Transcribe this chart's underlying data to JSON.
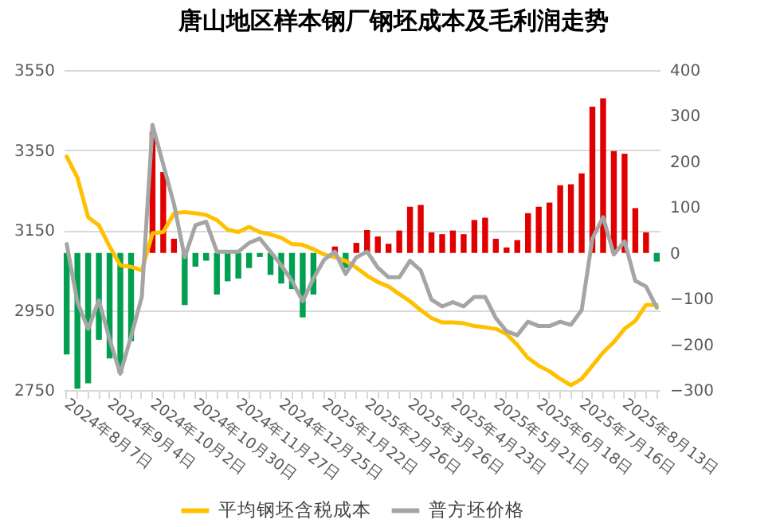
{
  "chart_data": {
    "type": "line",
    "title": "唐山地区样本钢厂钢坯成本及毛利润走势",
    "categories": [
      "2024年8月7日",
      null,
      null,
      null,
      "2024年9月4日",
      null,
      null,
      null,
      "2024年10月2日",
      null,
      null,
      null,
      "2024年10月30日",
      null,
      null,
      null,
      "2024年11月27日",
      null,
      null,
      null,
      "2024年12月25日",
      null,
      null,
      null,
      "2025年1月22日",
      null,
      null,
      null,
      "2025年2月26日",
      null,
      null,
      null,
      "2025年3月26日",
      null,
      null,
      null,
      "2025年4月23日",
      null,
      null,
      null,
      "2025年5月21日",
      null,
      null,
      null,
      "2025年6月18日",
      null,
      null,
      null,
      "2025年7月16日",
      null,
      null,
      null,
      "2025年8月13日",
      null,
      null,
      null
    ],
    "series": [
      {
        "type": "bar",
        "axis": "y2",
        "values": [
          -222,
          -297,
          -285,
          -190,
          -231,
          -262,
          -193,
          null,
          265,
          177,
          31,
          -114,
          -30,
          -17,
          -91,
          -62,
          -56,
          -33,
          -9,
          -48,
          -67,
          -79,
          -141,
          -91,
          null,
          14,
          -33,
          22,
          50,
          36,
          20,
          49,
          101,
          105,
          45,
          41,
          49,
          41,
          72,
          77,
          31,
          12,
          28,
          87,
          101,
          110,
          148,
          150,
          174,
          320,
          338,
          223,
          217,
          98,
          45,
          -19
        ],
        "colors": [
          "#00a050",
          "#00a050",
          "#00a050",
          "#00a050",
          "#00a050",
          "#00a050",
          "#00a050",
          "#00a050",
          "#e00000",
          "#e00000",
          "#e00000",
          "#00a050",
          "#00a050",
          "#00a050",
          "#00a050",
          "#00a050",
          "#00a050",
          "#00a050",
          "#00a050",
          "#00a050",
          "#00a050",
          "#00a050",
          "#00a050",
          "#00a050",
          "#00a050",
          "#e00000",
          "#00a050",
          "#e00000",
          "#e00000",
          "#e00000",
          "#e00000",
          "#e00000",
          "#e00000",
          "#e00000",
          "#e00000",
          "#e00000",
          "#e00000",
          "#e00000",
          "#e00000",
          "#e00000",
          "#e00000",
          "#e00000",
          "#e00000",
          "#e00000",
          "#e00000",
          "#e00000",
          "#e00000",
          "#e00000",
          "#e00000",
          "#e00000",
          "#e00000",
          "#e00000",
          "#e00000",
          "#e00000",
          "#e00000",
          "#00a050"
        ]
      },
      {
        "name": "平均钢坯含税成本",
        "color": "#ffc000",
        "values": [
          3334,
          3281,
          3182,
          3162,
          3109,
          3062,
          3058,
          3049,
          3142,
          3145,
          3192,
          3195,
          3192,
          3188,
          3175,
          3151,
          3145,
          3158,
          3145,
          3139,
          3131,
          3115,
          3113,
          3102,
          3089,
          3082,
          3073,
          3056,
          3036,
          3020,
          3009,
          2990,
          2972,
          2950,
          2930,
          2919,
          2919,
          2917,
          2910,
          2907,
          2903,
          2890,
          2863,
          2830,
          2811,
          2797,
          2778,
          2762,
          2778,
          2811,
          2844,
          2870,
          2903,
          2923,
          2963,
          2963
        ]
      },
      {
        "name": "普方坯价格",
        "color": "#a5a5a5",
        "values": [
          3115,
          2970,
          2903,
          2974,
          2877,
          2791,
          2884,
          2983,
          3413,
          3314,
          3215,
          3082,
          3162,
          3171,
          3096,
          3096,
          3096,
          3118,
          3129,
          3096,
          3062,
          3023,
          2972,
          3029,
          3076,
          3096,
          3040,
          3082,
          3096,
          3056,
          3032,
          3032,
          3073,
          3049,
          2976,
          2959,
          2970,
          2959,
          2983,
          2983,
          2930,
          2897,
          2887,
          2921,
          2910,
          2910,
          2921,
          2913,
          2950,
          3129,
          3182,
          3089,
          3122,
          3023,
          3009,
          2956
        ]
      }
    ],
    "ylim": [
      2750,
      3550
    ],
    "yticks": [
      {
        "value": 2750,
        "label": "2750"
      },
      {
        "value": 2950,
        "label": "2950"
      },
      {
        "value": 3150,
        "label": "3150"
      },
      {
        "value": 3350,
        "label": "3350"
      },
      {
        "value": 3550,
        "label": "3550"
      }
    ],
    "y2lim": [
      -300,
      400
    ],
    "y2ticks": [
      -300,
      -200,
      -100,
      0,
      100,
      200,
      300,
      400
    ],
    "grid": "y",
    "legend": "bottom"
  }
}
